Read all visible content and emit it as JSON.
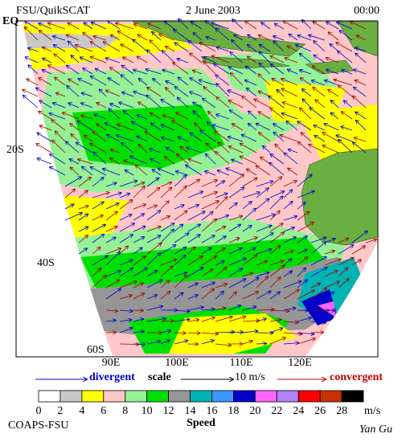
{
  "header": {
    "left": "FSU/QuikSCAT",
    "center": "2 June 2003",
    "right": "00:00"
  },
  "map": {
    "lat_labels": [
      "EQ",
      "20S",
      "40S",
      "60S"
    ],
    "lon_labels": [
      "90E",
      "100E",
      "110E",
      "120E"
    ]
  },
  "legend": {
    "divergent": "divergent",
    "scale": "scale",
    "scale_value": "10 m/s",
    "convergent": "convergent"
  },
  "colorbar": {
    "ticks": [
      0,
      2,
      4,
      6,
      8,
      10,
      12,
      14,
      16,
      18,
      20,
      22,
      24,
      26,
      28
    ],
    "unit": "m/s",
    "label": "Speed",
    "colors": [
      "#ffffff",
      "#c8c8c8",
      "#ffff00",
      "#ffc8c8",
      "#96f096",
      "#00e000",
      "#969696",
      "#00b4b4",
      "#3c96ff",
      "#0000c8",
      "#ff64ff",
      "#b482ff",
      "#ff0000",
      "#c83200",
      "#000000"
    ]
  },
  "footer": {
    "left": "COAPS-FSU",
    "right": "Yan Gu"
  }
}
